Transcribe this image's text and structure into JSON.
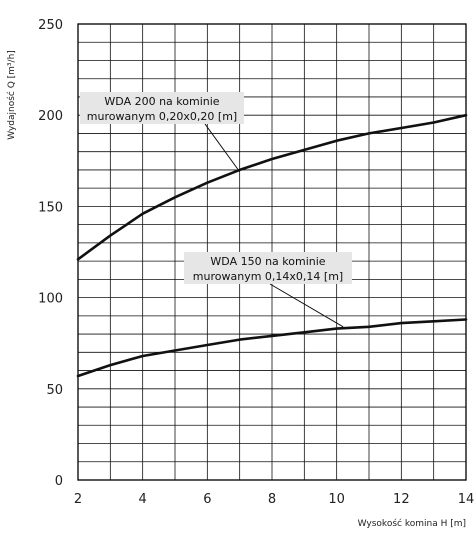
{
  "chart_data": {
    "type": "line",
    "xlabel": "Wysokość komina H [m]",
    "ylabel": "Wydajność Q [m³/h]",
    "xlim": [
      2,
      14
    ],
    "ylim": [
      0,
      250
    ],
    "x_ticks": [
      "2",
      "4",
      "6",
      "8",
      "10",
      "12",
      "14"
    ],
    "y_ticks": [
      "0",
      "50",
      "100",
      "150",
      "200",
      "250"
    ],
    "grid": true,
    "series": [
      {
        "name": "WDA 200 na kominie murowanym 0,20x0,20 [m]",
        "x": [
          2,
          3,
          4,
          5,
          6,
          7,
          8,
          9,
          10,
          11,
          12,
          13,
          14
        ],
        "y": [
          121,
          134,
          146,
          155,
          163,
          170,
          176,
          181,
          186,
          190,
          193,
          196,
          200
        ]
      },
      {
        "name": "WDA 150 na kominie murowanym 0,14x0,14 [m]",
        "x": [
          2,
          3,
          4,
          5,
          6,
          7,
          8,
          9,
          10,
          11,
          12,
          13,
          14
        ],
        "y": [
          57,
          63,
          68,
          71,
          74,
          77,
          79,
          81,
          83,
          84,
          86,
          87,
          88
        ]
      }
    ],
    "annotations": [
      {
        "line1": "WDA 200 na kominie",
        "line2": "murowanym 0,20x0,20 [m]"
      },
      {
        "line1": "WDA 150 na kominie",
        "line2": "murowanym 0,14x0,14 [m]"
      }
    ],
    "colors": {
      "line": "#111111",
      "grid": "#111111",
      "annotation_box": "#e6e6e6"
    }
  }
}
